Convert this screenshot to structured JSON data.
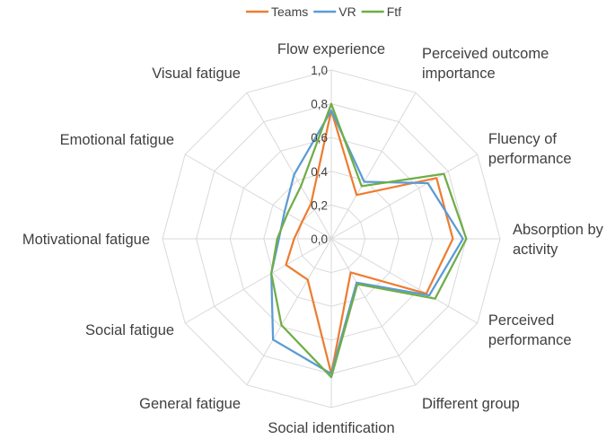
{
  "chart_data": {
    "type": "radar",
    "title": "",
    "axes": [
      "Flow experience",
      "Perceived outcome importance",
      "Fluency of performance",
      "Absorption by activity",
      "Perceived performance",
      "Different group",
      "Social identification",
      "General fatigue",
      "Social fatigue",
      "Motivational fatigue",
      "Emotional fatigue",
      "Visual fatigue"
    ],
    "axis_label_lines": [
      [
        "Flow experience"
      ],
      [
        "Perceived outcome",
        "importance"
      ],
      [
        "Fluency of",
        "performance"
      ],
      [
        "Absorption by",
        "activity"
      ],
      [
        "Perceived",
        "performance"
      ],
      [
        "Different group"
      ],
      [
        "Social identification"
      ],
      [
        "General fatigue"
      ],
      [
        "Social fatigue"
      ],
      [
        "Motivational fatigue"
      ],
      [
        "Emotional fatigue"
      ],
      [
        "Visual fatigue"
      ]
    ],
    "ticks": [
      "0,0",
      "0,2",
      "0,4",
      "0,6",
      "0,8",
      "1,0"
    ],
    "tick_values": [
      0,
      0.2,
      0.4,
      0.6,
      0.8,
      1.0
    ],
    "range": [
      0,
      1
    ],
    "grid": true,
    "legend_position": "top",
    "series": [
      {
        "name": "Teams",
        "color": "#ED7D31",
        "values": [
          0.76,
          0.3,
          0.72,
          0.72,
          0.65,
          0.23,
          0.8,
          0.28,
          0.31,
          0.22,
          0.2,
          0.24
        ]
      },
      {
        "name": "VR",
        "color": "#5B9BD5",
        "values": [
          0.76,
          0.39,
          0.66,
          0.78,
          0.67,
          0.3,
          0.8,
          0.69,
          0.41,
          0.31,
          0.32,
          0.44
        ]
      },
      {
        "name": "Ftf",
        "color": "#70AD47",
        "values": [
          0.8,
          0.36,
          0.77,
          0.8,
          0.71,
          0.31,
          0.82,
          0.59,
          0.41,
          0.32,
          0.3,
          0.36
        ]
      }
    ]
  }
}
